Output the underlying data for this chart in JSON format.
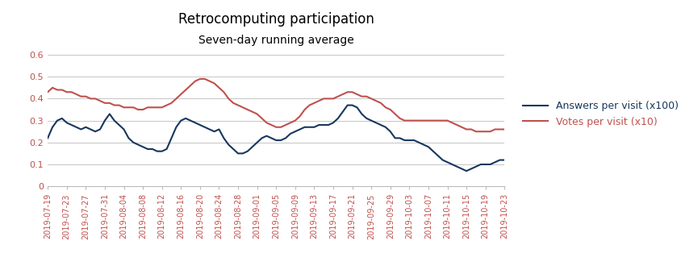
{
  "title": "Retrocomputing participation",
  "subtitle": "Seven-day running average",
  "title_color": "#000000",
  "subtitle_color": "#000000",
  "ytick_color": "#C0504D",
  "xtick_color": "#C0504D",
  "ylim": [
    0,
    0.6
  ],
  "yticks": [
    0,
    0.1,
    0.2,
    0.3,
    0.4,
    0.5,
    0.6
  ],
  "ytick_labels": [
    "0",
    "0.1",
    "0.2",
    "0.3",
    "0.4",
    "0.5",
    "0.6"
  ],
  "line_answers_color": "#17375E",
  "line_votes_color": "#C0504D",
  "legend_answers": "Answers per visit (x100)",
  "legend_votes": "Votes per visit (x10)",
  "legend_answers_color": "#17375E",
  "legend_votes_color": "#C0504D",
  "background_color": "#FFFFFF",
  "grid_color": "#BBBBBB",
  "xtick_dates": [
    "2019-07-19",
    "2019-07-23",
    "2019-07-27",
    "2019-07-31",
    "2019-08-04",
    "2019-08-08",
    "2019-08-12",
    "2019-08-16",
    "2019-08-20",
    "2019-08-24",
    "2019-08-28",
    "2019-09-01",
    "2019-09-05",
    "2019-09-09",
    "2019-09-13",
    "2019-09-17",
    "2019-09-21",
    "2019-09-25",
    "2019-09-29",
    "2019-10-03",
    "2019-10-07",
    "2019-10-11",
    "2019-10-15",
    "2019-10-19",
    "2019-10-23"
  ],
  "dates": [
    "2019-07-19",
    "2019-07-20",
    "2019-07-21",
    "2019-07-22",
    "2019-07-23",
    "2019-07-24",
    "2019-07-25",
    "2019-07-26",
    "2019-07-27",
    "2019-07-28",
    "2019-07-29",
    "2019-07-30",
    "2019-07-31",
    "2019-08-01",
    "2019-08-02",
    "2019-08-03",
    "2019-08-04",
    "2019-08-05",
    "2019-08-06",
    "2019-08-07",
    "2019-08-08",
    "2019-08-09",
    "2019-08-10",
    "2019-08-11",
    "2019-08-12",
    "2019-08-13",
    "2019-08-14",
    "2019-08-15",
    "2019-08-16",
    "2019-08-17",
    "2019-08-18",
    "2019-08-19",
    "2019-08-20",
    "2019-08-21",
    "2019-08-22",
    "2019-08-23",
    "2019-08-24",
    "2019-08-25",
    "2019-08-26",
    "2019-08-27",
    "2019-08-28",
    "2019-08-29",
    "2019-08-30",
    "2019-08-31",
    "2019-09-01",
    "2019-09-02",
    "2019-09-03",
    "2019-09-04",
    "2019-09-05",
    "2019-09-06",
    "2019-09-07",
    "2019-09-08",
    "2019-09-09",
    "2019-09-10",
    "2019-09-11",
    "2019-09-12",
    "2019-09-13",
    "2019-09-14",
    "2019-09-15",
    "2019-09-16",
    "2019-09-17",
    "2019-09-18",
    "2019-09-19",
    "2019-09-20",
    "2019-09-21",
    "2019-09-22",
    "2019-09-23",
    "2019-09-24",
    "2019-09-25",
    "2019-09-26",
    "2019-09-27",
    "2019-09-28",
    "2019-09-29",
    "2019-09-30",
    "2019-10-01",
    "2019-10-02",
    "2019-10-03",
    "2019-10-04",
    "2019-10-05",
    "2019-10-06",
    "2019-10-07",
    "2019-10-08",
    "2019-10-09",
    "2019-10-10",
    "2019-10-11",
    "2019-10-12",
    "2019-10-13",
    "2019-10-14",
    "2019-10-15",
    "2019-10-16",
    "2019-10-17",
    "2019-10-18",
    "2019-10-19",
    "2019-10-20",
    "2019-10-21",
    "2019-10-22",
    "2019-10-23"
  ],
  "answers": [
    0.22,
    0.27,
    0.3,
    0.31,
    0.29,
    0.28,
    0.27,
    0.26,
    0.27,
    0.26,
    0.25,
    0.26,
    0.3,
    0.33,
    0.3,
    0.28,
    0.26,
    0.22,
    0.2,
    0.19,
    0.18,
    0.17,
    0.17,
    0.16,
    0.16,
    0.17,
    0.22,
    0.27,
    0.3,
    0.31,
    0.3,
    0.29,
    0.28,
    0.27,
    0.26,
    0.25,
    0.26,
    0.22,
    0.19,
    0.17,
    0.15,
    0.15,
    0.16,
    0.18,
    0.2,
    0.22,
    0.23,
    0.22,
    0.21,
    0.21,
    0.22,
    0.24,
    0.25,
    0.26,
    0.27,
    0.27,
    0.27,
    0.28,
    0.28,
    0.28,
    0.29,
    0.31,
    0.34,
    0.37,
    0.37,
    0.36,
    0.33,
    0.31,
    0.3,
    0.29,
    0.28,
    0.27,
    0.25,
    0.22,
    0.22,
    0.21,
    0.21,
    0.21,
    0.2,
    0.19,
    0.18,
    0.16,
    0.14,
    0.12,
    0.11,
    0.1,
    0.09,
    0.08,
    0.07,
    0.08,
    0.09,
    0.1,
    0.1,
    0.1,
    0.11,
    0.12,
    0.12
  ],
  "votes": [
    0.43,
    0.45,
    0.44,
    0.44,
    0.43,
    0.43,
    0.42,
    0.41,
    0.41,
    0.4,
    0.4,
    0.39,
    0.38,
    0.38,
    0.37,
    0.37,
    0.36,
    0.36,
    0.36,
    0.35,
    0.35,
    0.36,
    0.36,
    0.36,
    0.36,
    0.37,
    0.38,
    0.4,
    0.42,
    0.44,
    0.46,
    0.48,
    0.49,
    0.49,
    0.48,
    0.47,
    0.45,
    0.43,
    0.4,
    0.38,
    0.37,
    0.36,
    0.35,
    0.34,
    0.33,
    0.31,
    0.29,
    0.28,
    0.27,
    0.27,
    0.28,
    0.29,
    0.3,
    0.32,
    0.35,
    0.37,
    0.38,
    0.39,
    0.4,
    0.4,
    0.4,
    0.41,
    0.42,
    0.43,
    0.43,
    0.42,
    0.41,
    0.41,
    0.4,
    0.39,
    0.38,
    0.36,
    0.35,
    0.33,
    0.31,
    0.3,
    0.3,
    0.3,
    0.3,
    0.3,
    0.3,
    0.3,
    0.3,
    0.3,
    0.3,
    0.29,
    0.28,
    0.27,
    0.26,
    0.26,
    0.25,
    0.25,
    0.25,
    0.25,
    0.26,
    0.26,
    0.26
  ]
}
